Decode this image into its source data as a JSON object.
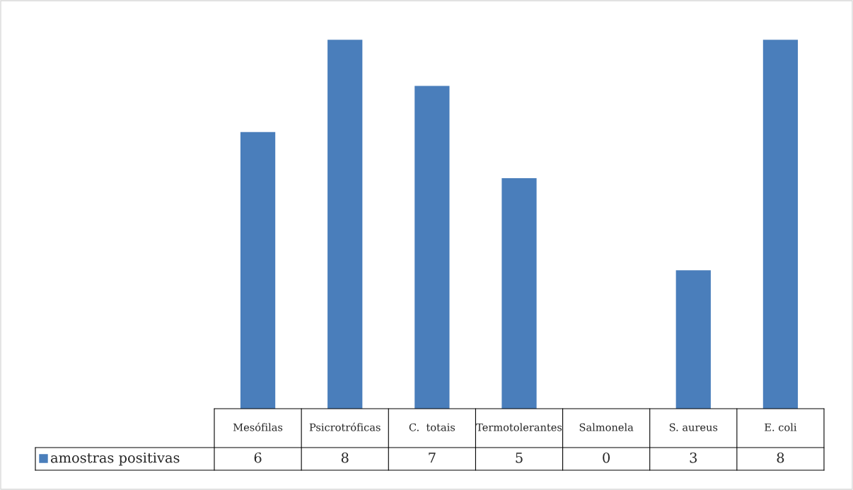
{
  "chart_data": {
    "type": "bar",
    "categories": [
      "Mesófilas",
      "Psicrotróficas",
      "C.  totais",
      "Termotolerantes",
      "Salmonela",
      "S. aureus",
      "E. coli"
    ],
    "series": [
      {
        "name": "amostras positivas",
        "color": "#4a7ebb",
        "values": [
          6,
          8,
          7,
          5,
          0,
          3,
          8
        ]
      }
    ],
    "data_labels": true,
    "legend": "bottom left"
  }
}
